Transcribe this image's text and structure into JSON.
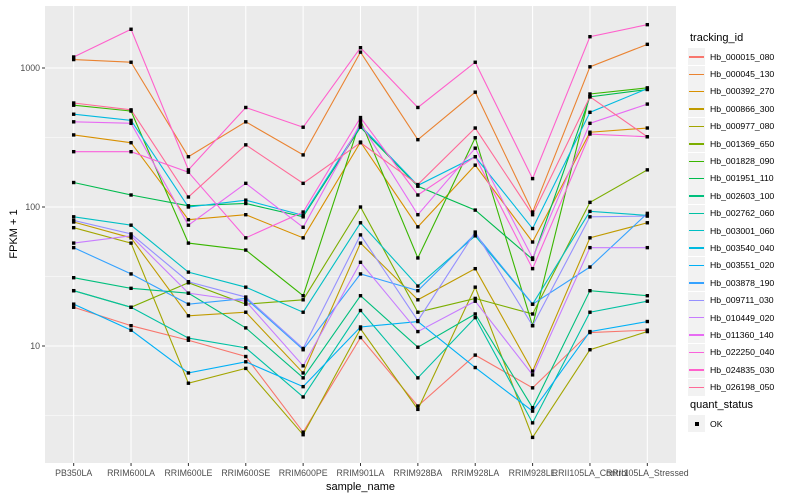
{
  "chart_data": {
    "type": "line",
    "title": "",
    "xlabel": "sample_name",
    "ylabel": "FPKM + 1",
    "y_scale": "log10",
    "y_ticks": [
      10,
      100,
      1000
    ],
    "ylim": [
      1.5,
      2800
    ],
    "grid": "major-and-minor, white on grey panel",
    "panel_color": "#EBEBEB",
    "point_shape": "small black square",
    "point_color": "#000000",
    "legend_position": "right",
    "categories": [
      "PB350LA",
      "RRIM600LA",
      "RRIM600LE",
      "RRIM600SE",
      "RRIM600PE",
      "RRIM901LA",
      "RRIM928BA",
      "RRIM928LA",
      "RRIM928LE",
      "RRII105LA_Control",
      "RRII105LA_Stressed"
    ],
    "series": [
      {
        "name": "Hb_000015_080",
        "color": "#F8766D",
        "values": [
          19,
          14,
          11,
          8.4,
          2.4,
          11.5,
          3.7,
          8.6,
          5.0,
          12.5,
          13
        ]
      },
      {
        "name": "Hb_000045_130",
        "color": "#EA8331",
        "values": [
          1150,
          1100,
          230,
          410,
          237,
          1300,
          305,
          670,
          92,
          1020,
          1480
        ]
      },
      {
        "name": "Hb_000392_270",
        "color": "#D89000",
        "values": [
          330,
          290,
          81,
          88,
          60,
          293,
          72,
          200,
          56,
          345,
          370
        ]
      },
      {
        "name": "Hb_000866_300",
        "color": "#C09B00",
        "values": [
          78,
          60,
          16.5,
          17.5,
          6.4,
          55,
          21.5,
          36,
          6.6,
          60,
          77
        ]
      },
      {
        "name": "Hb_000977_080",
        "color": "#A3A500",
        "values": [
          71,
          55,
          5.4,
          6.9,
          2.3,
          13.3,
          3.5,
          26.5,
          2.2,
          9.4,
          12.7
        ]
      },
      {
        "name": "Hb_001369_650",
        "color": "#7CAE00",
        "values": [
          25,
          19,
          28.5,
          20,
          21.5,
          100,
          17.5,
          22,
          17,
          108,
          185
        ]
      },
      {
        "name": "Hb_001828_090",
        "color": "#39B600",
        "values": [
          540,
          490,
          55,
          49,
          23,
          420,
          43,
          315,
          14,
          650,
          720
        ]
      },
      {
        "name": "Hb_001951_110",
        "color": "#00BB4E",
        "values": [
          150,
          122,
          102,
          106,
          85,
          375,
          141,
          95,
          42,
          620,
          700
        ]
      },
      {
        "name": "Hb_002603_100",
        "color": "#00BF7D",
        "values": [
          31,
          26,
          24,
          13.5,
          5.9,
          23,
          9.8,
          17,
          3.6,
          25,
          23
        ]
      },
      {
        "name": "Hb_002762_060",
        "color": "#00C1A3",
        "values": [
          25,
          19,
          11.4,
          9.7,
          4.3,
          18,
          5.9,
          16,
          2.8,
          17.5,
          21
        ]
      },
      {
        "name": "Hb_003001_060",
        "color": "#00BFC4",
        "values": [
          85,
          74,
          34,
          26.5,
          17.5,
          77,
          27,
          62,
          20,
          93,
          87
        ]
      },
      {
        "name": "Hb_003540_040",
        "color": "#00BAE0",
        "values": [
          465,
          420,
          100,
          112,
          87,
          385,
          143,
          230,
          70,
          480,
          710
        ]
      },
      {
        "name": "Hb_003551_020",
        "color": "#00B0F6",
        "values": [
          20,
          13,
          6.4,
          7.7,
          5.1,
          13.7,
          15,
          7.0,
          3.4,
          12.7,
          15
        ]
      },
      {
        "name": "Hb_003878_190",
        "color": "#35A2FF",
        "values": [
          51,
          33,
          20,
          22,
          9.4,
          33,
          25,
          64,
          20,
          37,
          90
        ]
      },
      {
        "name": "Hb_009711_030",
        "color": "#9590FF",
        "values": [
          80,
          64,
          29,
          22.5,
          9.6,
          63,
          15.2,
          66,
          14,
          85,
          86
        ]
      },
      {
        "name": "Hb_010449_020",
        "color": "#C77CFF",
        "values": [
          55,
          62,
          24,
          21,
          7.2,
          40,
          12.7,
          21,
          6.2,
          51,
          51
        ]
      },
      {
        "name": "Hb_011360_140",
        "color": "#E76BF3",
        "values": [
          410,
          400,
          74,
          148,
          71.5,
          400,
          88,
          265,
          43,
          400,
          550
        ]
      },
      {
        "name": "Hb_022250_040",
        "color": "#FA62DB",
        "values": [
          250,
          250,
          178,
          60,
          92,
          440,
          122,
          230,
          36,
          335,
          320
        ]
      },
      {
        "name": "Hb_024835_030",
        "color": "#FF61CC",
        "values": [
          1200,
          1900,
          185,
          520,
          375,
          1400,
          520,
          1100,
          160,
          1680,
          2050
        ]
      },
      {
        "name": "Hb_026198_050",
        "color": "#FF6A98",
        "values": [
          560,
          500,
          118,
          280,
          148,
          290,
          145,
          370,
          88,
          620,
          320
        ]
      }
    ]
  },
  "legend": {
    "tracking_title": "tracking_id",
    "quant_title": "quant_status",
    "quant_items": [
      {
        "label": "OK"
      }
    ]
  },
  "style": {
    "tick_text_color": "#4D4D4D",
    "grid_color": "#FFFFFF",
    "accent_black": "#000000"
  }
}
